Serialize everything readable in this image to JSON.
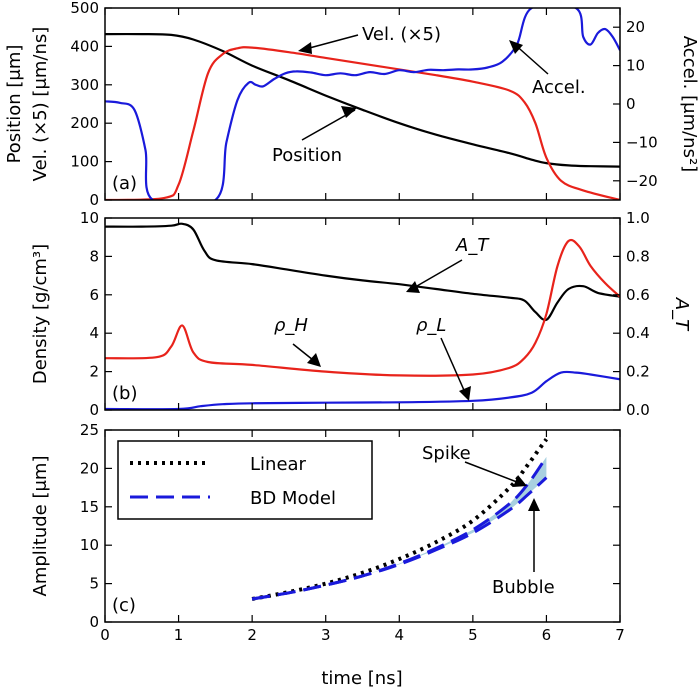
{
  "xlabel": "time [ns]",
  "panels": {
    "a": {
      "label": "(a)",
      "ylabel_left": "Position [μm]",
      "ylabel_left2": "Vel. (×5) [μm/ns]",
      "ylabel_right": "Accel. [μm/ns²]",
      "annotations": {
        "vel": "Vel. (×5)",
        "accel": "Accel.",
        "position": "Position"
      }
    },
    "b": {
      "label": "(b)",
      "ylabel_left": "Density [g/cm³]",
      "ylabel_right": "A_T",
      "annotations": {
        "at": "A_T",
        "rho_h": "ρ_H",
        "rho_l": "ρ_L"
      }
    },
    "c": {
      "label": "(c)",
      "ylabel_left": "Amplitude [μm]",
      "legend": {
        "linear": "Linear",
        "bd": "BD Model"
      },
      "annotations": {
        "spike": "Spike",
        "bubble": "Bubble"
      }
    }
  },
  "colors": {
    "black": "#000000",
    "red": "#e8231b",
    "blue": "#1a1adb",
    "band": "#a8d0e0"
  },
  "chart_data": [
    {
      "type": "line",
      "xlim": [
        0,
        7
      ],
      "ylim_left": [
        0,
        500
      ],
      "ylim_right": [
        -25,
        25
      ],
      "xticks": [
        0,
        1,
        2,
        3,
        4,
        5,
        6,
        7
      ],
      "yticks_left": [
        0,
        100,
        200,
        300,
        400,
        500
      ],
      "yticks_right": [
        -20,
        -10,
        0,
        10,
        20
      ],
      "series": [
        {
          "axis": "left",
          "color": "black",
          "x": [
            0,
            0.5,
            0.9,
            1.2,
            1.6,
            2.0,
            2.5,
            3.0,
            3.5,
            4.0,
            4.5,
            5.0,
            5.5,
            5.8,
            6.0,
            6.3,
            6.6,
            7.0
          ],
          "y": [
            432,
            432,
            430,
            418,
            388,
            350,
            312,
            272,
            235,
            200,
            170,
            145,
            122,
            105,
            96,
            90,
            88,
            87
          ]
        },
        {
          "axis": "left",
          "color": "red",
          "x": [
            0,
            0.8,
            1.0,
            1.2,
            1.4,
            1.6,
            1.8,
            2.0,
            2.5,
            3.0,
            3.5,
            4.0,
            4.5,
            5.0,
            5.5,
            5.7,
            5.85,
            6.0,
            6.2,
            6.5,
            7.0
          ],
          "y": [
            0,
            5,
            40,
            180,
            330,
            380,
            395,
            397,
            385,
            370,
            355,
            340,
            325,
            308,
            285,
            255,
            200,
            110,
            50,
            25,
            0
          ]
        },
        {
          "axis": "right",
          "color": "blue",
          "x": [
            0,
            0.2,
            0.4,
            0.55,
            0.65,
            1.5,
            1.65,
            1.8,
            1.95,
            2.05,
            2.15,
            2.3,
            2.45,
            2.6,
            2.8,
            3.0,
            3.2,
            3.4,
            3.6,
            3.8,
            4.0,
            4.2,
            4.4,
            4.6,
            4.8,
            5.0,
            5.2,
            5.4,
            5.6,
            5.8,
            6.4,
            6.5,
            6.6,
            6.7,
            6.8,
            6.9,
            7.0
          ],
          "y": [
            0.7,
            0.3,
            -1.5,
            -12,
            -25,
            -25,
            -10,
            1,
            5.5,
            5,
            4.6,
            6.5,
            8,
            8.5,
            8.2,
            7.5,
            8,
            7.5,
            8.3,
            7.8,
            8.8,
            8.3,
            8.9,
            8.8,
            9,
            9,
            9.5,
            11,
            15.5,
            25,
            25,
            17.5,
            15.5,
            18.5,
            19.5,
            17.5,
            14
          ]
        }
      ]
    },
    {
      "type": "line",
      "xlim": [
        0,
        7
      ],
      "ylim_left": [
        0,
        10
      ],
      "ylim_right": [
        0,
        1.0
      ],
      "xticks": [
        0,
        1,
        2,
        3,
        4,
        5,
        6,
        7
      ],
      "yticks_left": [
        0,
        2,
        4,
        6,
        8,
        10
      ],
      "yticks_right": [
        "0.0",
        "0.2",
        "0.4",
        "0.6",
        "0.8",
        "1.0"
      ],
      "series": [
        {
          "axis": "right",
          "color": "black",
          "x": [
            0,
            0.5,
            0.9,
            1.05,
            1.2,
            1.35,
            1.5,
            2.0,
            2.5,
            3.0,
            3.5,
            4.0,
            4.5,
            5.0,
            5.5,
            5.7,
            5.85,
            6.0,
            6.15,
            6.3,
            6.5,
            6.7,
            7.0
          ],
          "y": [
            0.955,
            0.955,
            0.96,
            0.97,
            0.94,
            0.83,
            0.78,
            0.76,
            0.73,
            0.7,
            0.675,
            0.655,
            0.63,
            0.605,
            0.585,
            0.57,
            0.51,
            0.47,
            0.56,
            0.63,
            0.645,
            0.61,
            0.59
          ]
        },
        {
          "axis": "left",
          "color": "red",
          "x": [
            0,
            0.7,
            0.9,
            1.05,
            1.2,
            1.4,
            2.0,
            3.0,
            4.0,
            5.0,
            5.5,
            5.7,
            5.85,
            6.0,
            6.15,
            6.3,
            6.45,
            6.6,
            6.8,
            7.0
          ],
          "y": [
            2.7,
            2.75,
            3.3,
            4.4,
            3.0,
            2.5,
            2.35,
            2.0,
            1.8,
            1.85,
            2.2,
            2.7,
            3.5,
            5.0,
            7.5,
            8.8,
            8.5,
            7.5,
            6.6,
            5.9
          ]
        },
        {
          "axis": "left",
          "color": "blue",
          "x": [
            0,
            1.0,
            1.3,
            1.6,
            2.0,
            3.0,
            4.0,
            5.0,
            5.5,
            5.8,
            6.0,
            6.2,
            6.4,
            6.6,
            7.0
          ],
          "y": [
            0.05,
            0.05,
            0.2,
            0.3,
            0.35,
            0.38,
            0.4,
            0.48,
            0.65,
            0.9,
            1.5,
            1.95,
            1.95,
            1.85,
            1.6
          ]
        }
      ]
    },
    {
      "type": "line",
      "xlim": [
        0,
        7
      ],
      "ylim": [
        0,
        25
      ],
      "xticks": [
        0,
        1,
        2,
        3,
        4,
        5,
        6,
        7
      ],
      "yticks": [
        0,
        5,
        10,
        15,
        20,
        25
      ],
      "series": [
        {
          "name": "Linear",
          "style": "dotted",
          "color": "black",
          "x": [
            2.0,
            2.5,
            3.0,
            3.5,
            4.0,
            4.5,
            5.0,
            5.5,
            5.75,
            5.9,
            6.0
          ],
          "y": [
            3.0,
            3.9,
            5.0,
            6.4,
            8.2,
            10.4,
            13.2,
            17.5,
            20.5,
            22.5,
            23.8
          ]
        },
        {
          "name": "BD Model",
          "style": "dashed",
          "color": "blue",
          "x": [
            2.0,
            2.5,
            3.0,
            3.5,
            4.0,
            4.5,
            5.0,
            5.5,
            5.75,
            6.0
          ],
          "y": [
            3.0,
            3.8,
            4.8,
            6.0,
            7.5,
            9.4,
            11.6,
            14.6,
            16.6,
            18.8
          ]
        },
        {
          "style": "dashed",
          "color": "blue",
          "x": [
            2.0,
            2.5,
            3.0,
            3.5,
            4.0,
            4.5,
            5.0,
            5.5,
            5.75,
            6.0
          ],
          "y": [
            3.0,
            3.8,
            4.8,
            6.0,
            7.6,
            9.6,
            12.0,
            15.4,
            18.0,
            21.5
          ]
        }
      ]
    }
  ]
}
